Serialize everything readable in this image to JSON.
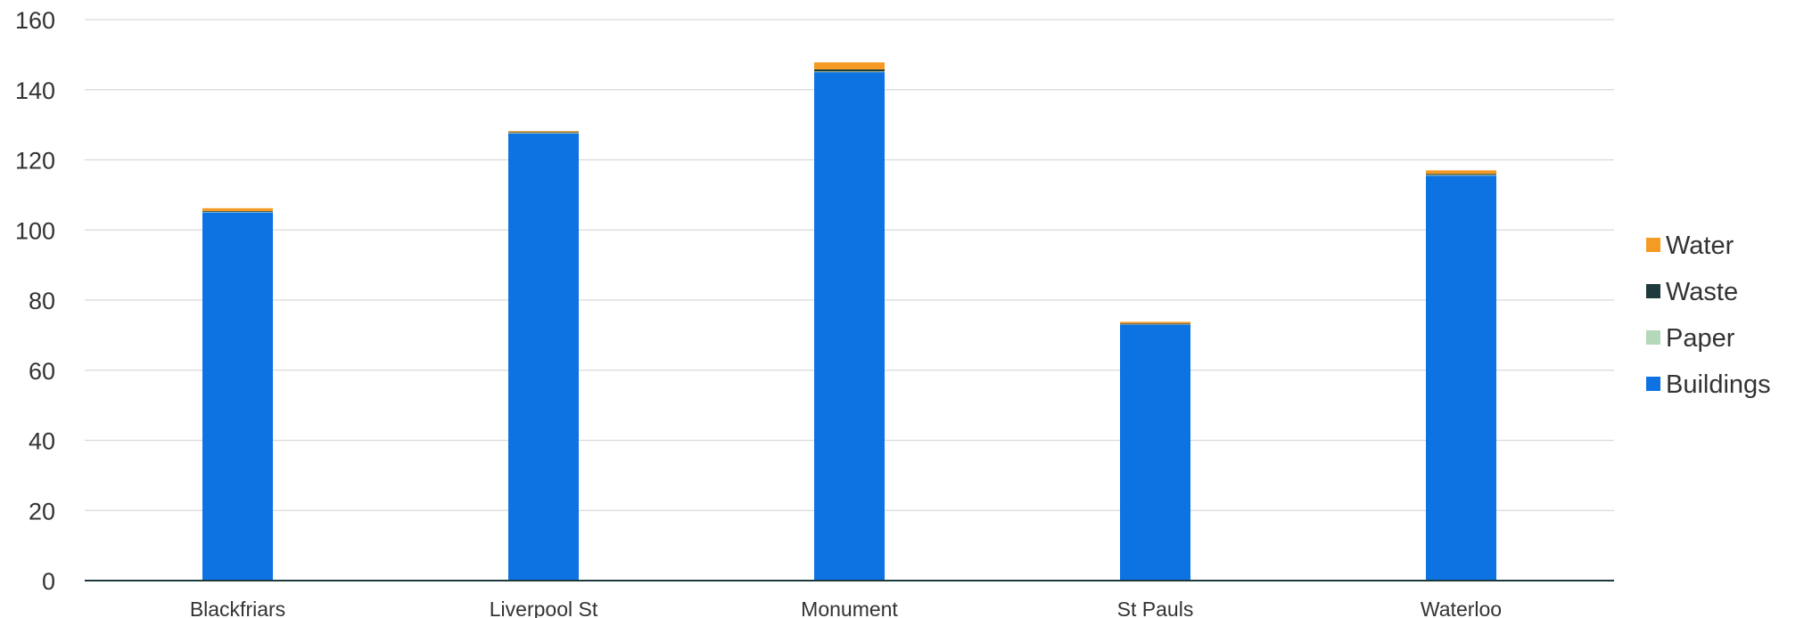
{
  "chart_data": {
    "type": "bar",
    "stacked": true,
    "categories": [
      "Blackfriars",
      "Liverpool St",
      "Monument",
      "St Pauls",
      "Waterloo"
    ],
    "series": [
      {
        "name": "Buildings",
        "color": "#0d72e2",
        "values": [
          105,
          127.5,
          145,
          73,
          115.5
        ]
      },
      {
        "name": "Paper",
        "color": "#b3d9b8",
        "values": [
          0.2,
          0.2,
          0.2,
          0.1,
          0.2
        ]
      },
      {
        "name": "Waste",
        "color": "#1f3a3d",
        "values": [
          0.2,
          0.2,
          0.6,
          0.2,
          0.3
        ]
      },
      {
        "name": "Water",
        "color": "#f59a23",
        "values": [
          0.8,
          0.3,
          2.0,
          0.5,
          1.0
        ]
      }
    ],
    "ylim": [
      0,
      160
    ],
    "yticks": [
      0,
      20,
      40,
      60,
      80,
      100,
      120,
      140,
      160
    ],
    "grid": true,
    "legend_position": "right",
    "legend_order": [
      "Water",
      "Waste",
      "Paper",
      "Buildings"
    ]
  }
}
